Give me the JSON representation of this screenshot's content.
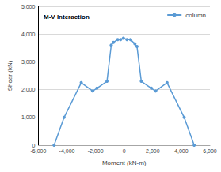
{
  "chart_data": {
    "type": "line",
    "title": "M-V Interaction",
    "x_label": "Moment (kN-m)",
    "y_label": "Shear (kN)",
    "series": [
      {
        "name": "column",
        "color": "#5b9bd5",
        "marker": "circle",
        "x": [
          -4900,
          -4200,
          -3000,
          -2200,
          -1900,
          -1200,
          -900,
          -750,
          -450,
          -250,
          -50,
          200,
          450,
          750,
          900,
          1200,
          1900,
          2200,
          3000,
          4200,
          4900
        ],
        "values": [
          0,
          1000,
          2250,
          1950,
          2050,
          2300,
          3600,
          3700,
          3800,
          3800,
          3850,
          3800,
          3800,
          3650,
          3550,
          2300,
          2050,
          1950,
          2250,
          1000,
          0
        ]
      }
    ],
    "xlim": [
      -6000,
      6000
    ],
    "xticks": [
      {
        "value": -6000,
        "label": "-6,000"
      },
      {
        "value": -4000,
        "label": "-4,000"
      },
      {
        "value": -2000,
        "label": "-2,000"
      },
      0,
      {
        "value": 2000,
        "label": "2,000"
      },
      {
        "value": 4000,
        "label": "4,000"
      },
      {
        "value": 6000,
        "label": "6,000"
      }
    ],
    "ylim": [
      0,
      5000
    ],
    "yticks": [
      0,
      {
        "value": 1000,
        "label": "1,000"
      },
      {
        "value": 2000,
        "label": "2,000"
      },
      {
        "value": 3000,
        "label": "3,000"
      },
      {
        "value": 4000,
        "label": "4,000"
      },
      {
        "value": 5000,
        "label": "5,000"
      }
    ],
    "grid": "y",
    "legend": "top-right"
  }
}
